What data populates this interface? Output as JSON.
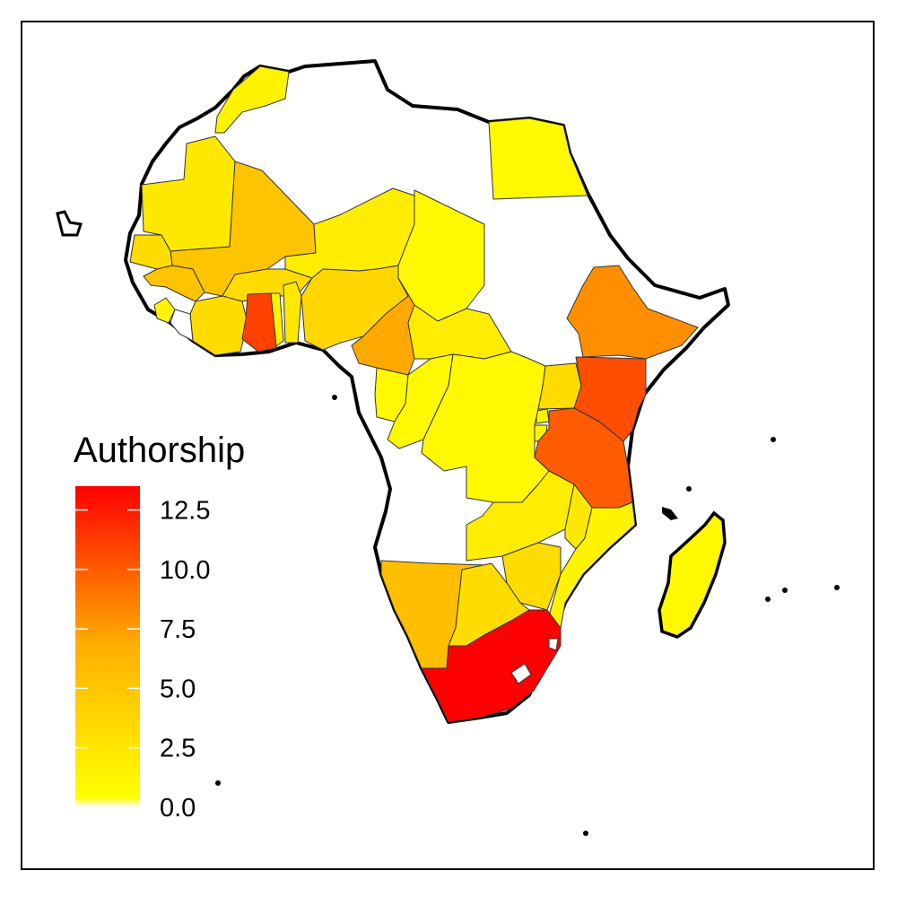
{
  "chart_data": {
    "type": "heatmap",
    "map": "Africa",
    "legend": {
      "title": "Authorship",
      "ticks": [
        "12.5",
        "10.0",
        "7.5",
        "5.0",
        "2.5",
        "0.0"
      ],
      "tick_values": [
        12.5,
        10.0,
        7.5,
        5.0,
        2.5,
        0.0
      ],
      "range": [
        0.0,
        13.5
      ],
      "low_color": "#ffff00",
      "high_color": "#ff0000"
    },
    "countries": [
      {
        "id": "morocco",
        "name": "Morocco",
        "value": 1.0
      },
      {
        "id": "egypt",
        "name": "Egypt",
        "value": 0.5
      },
      {
        "id": "mauritania",
        "name": "Mauritania",
        "value": 2.0
      },
      {
        "id": "mali",
        "name": "Mali",
        "value": 5.0
      },
      {
        "id": "niger",
        "name": "Niger",
        "value": 1.5
      },
      {
        "id": "chad",
        "name": "Chad",
        "value": 0.5
      },
      {
        "id": "senegal",
        "name": "Senegal",
        "value": 3.0
      },
      {
        "id": "burkina_faso",
        "name": "Burkina Faso",
        "value": 3.0
      },
      {
        "id": "guinea",
        "name": "Guinea",
        "value": 5.0
      },
      {
        "id": "sierra_leone",
        "name": "Sierra Leone",
        "value": 1.0
      },
      {
        "id": "cote_divoire",
        "name": "Côte d'Ivoire",
        "value": 3.0
      },
      {
        "id": "ghana",
        "name": "Ghana",
        "value": 11.0
      },
      {
        "id": "togo",
        "name": "Togo",
        "value": 1.0
      },
      {
        "id": "benin",
        "name": "Benin",
        "value": 2.0
      },
      {
        "id": "nigeria",
        "name": "Nigeria",
        "value": 3.5
      },
      {
        "id": "cameroon",
        "name": "Cameroon",
        "value": 7.0
      },
      {
        "id": "car",
        "name": "Central African Republic",
        "value": 1.5
      },
      {
        "id": "ethiopia",
        "name": "Ethiopia",
        "value": 8.0
      },
      {
        "id": "kenya",
        "name": "Kenya",
        "value": 10.5
      },
      {
        "id": "uganda",
        "name": "Uganda",
        "value": 3.0
      },
      {
        "id": "rwanda",
        "name": "Rwanda",
        "value": 1.0
      },
      {
        "id": "burundi",
        "name": "Burundi",
        "value": 1.0
      },
      {
        "id": "tanzania",
        "name": "Tanzania",
        "value": 10.0
      },
      {
        "id": "gabon",
        "name": "Gabon",
        "value": 0.5
      },
      {
        "id": "congo",
        "name": "Congo",
        "value": 0.5
      },
      {
        "id": "drc",
        "name": "DR Congo",
        "value": 0.5
      },
      {
        "id": "zambia",
        "name": "Zambia",
        "value": 1.5
      },
      {
        "id": "malawi",
        "name": "Malawi",
        "value": 2.0
      },
      {
        "id": "mozambique",
        "name": "Mozambique",
        "value": 1.0
      },
      {
        "id": "zimbabwe",
        "name": "Zimbabwe",
        "value": 3.0
      },
      {
        "id": "namibia",
        "name": "Namibia",
        "value": 5.5
      },
      {
        "id": "botswana",
        "name": "Botswana",
        "value": 3.0
      },
      {
        "id": "south_africa",
        "name": "South Africa",
        "value": 13.5
      },
      {
        "id": "madagascar",
        "name": "Madagascar",
        "value": 0.5
      },
      {
        "id": "western_sahara",
        "name": "Western Sahara",
        "value": null
      },
      {
        "id": "algeria",
        "name": "Algeria",
        "value": null
      },
      {
        "id": "libya",
        "name": "Libya",
        "value": null
      },
      {
        "id": "sudan",
        "name": "Sudan",
        "value": null
      },
      {
        "id": "somalia",
        "name": "Somalia",
        "value": null
      },
      {
        "id": "angola",
        "name": "Angola",
        "value": null
      },
      {
        "id": "liberia",
        "name": "Liberia",
        "value": null
      }
    ]
  }
}
